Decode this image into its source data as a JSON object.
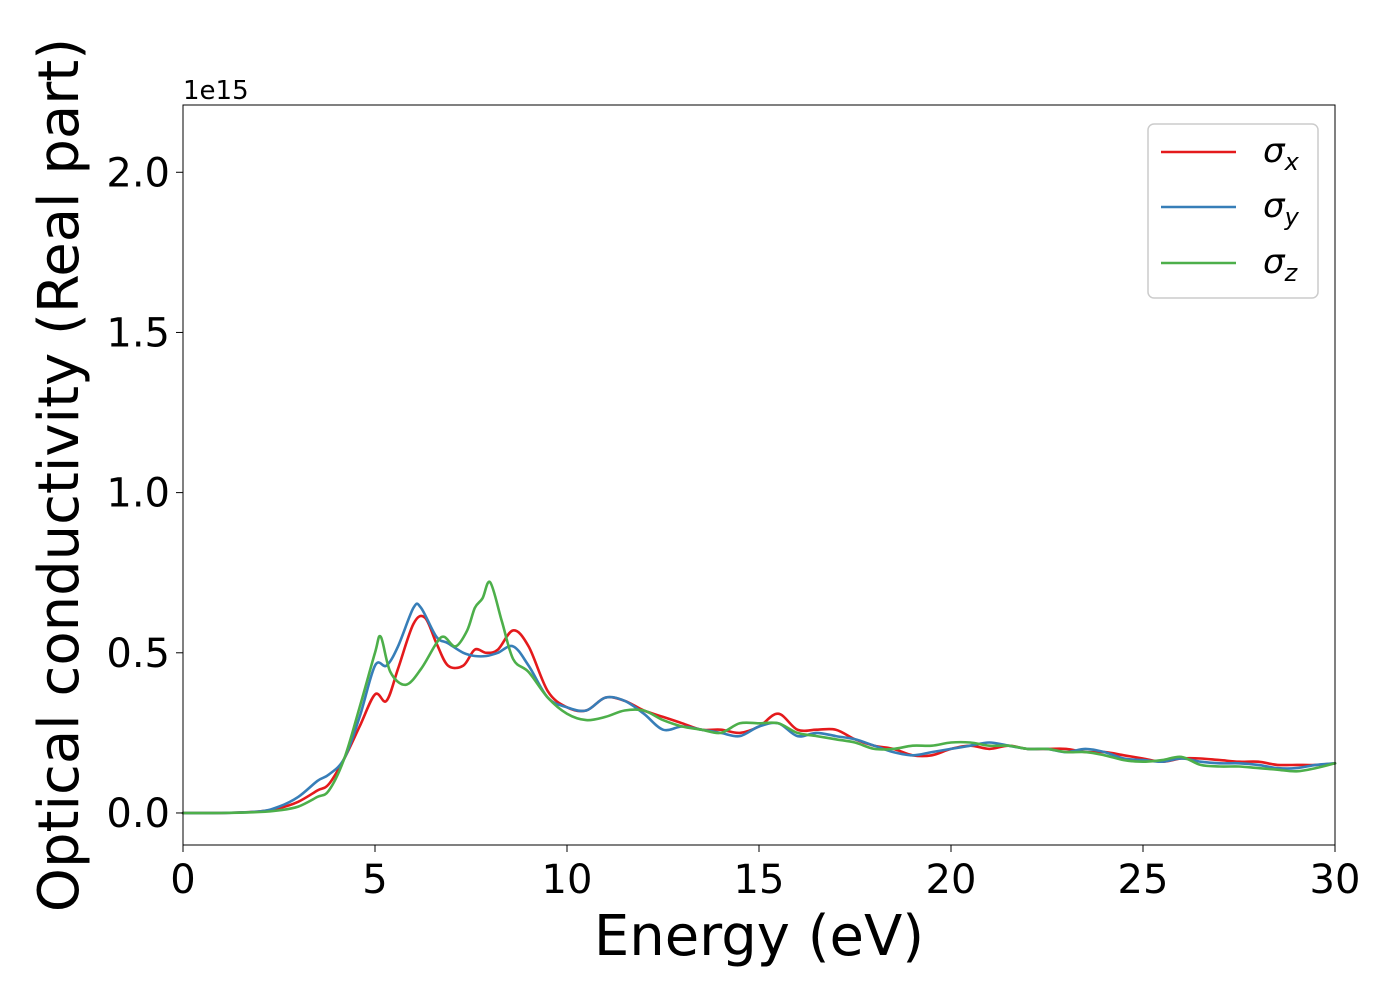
{
  "chart_data": {
    "type": "line",
    "xlabel": "Energy (eV)",
    "ylabel": "Optical conductivity (Real part)",
    "y_offset_label": "1e15",
    "xlim": [
      0,
      30
    ],
    "ylim": [
      -0.1,
      2.21
    ],
    "x_ticks": [
      0,
      5,
      10,
      15,
      20,
      25,
      30
    ],
    "x_tick_labels": [
      "0",
      "5",
      "10",
      "15",
      "20",
      "25",
      "30"
    ],
    "y_ticks": [
      0.0,
      0.5,
      1.0,
      1.5,
      2.0
    ],
    "y_tick_labels": [
      "0.0",
      "0.5",
      "1.0",
      "1.5",
      "2.0"
    ],
    "grid": false,
    "legend_position": "top-right",
    "series": [
      {
        "name": "σx",
        "name_base": "σ",
        "name_sub": "x",
        "color": "#e41a1c",
        "x": [
          0,
          1,
          2,
          2.5,
          3,
          3.5,
          3.8,
          4.2,
          4.6,
          5.0,
          5.3,
          5.6,
          6.0,
          6.3,
          6.6,
          6.9,
          7.3,
          7.6,
          7.9,
          8.2,
          8.6,
          9.0,
          9.5,
          10.0,
          10.5,
          11.0,
          11.5,
          12.0,
          12.5,
          13.0,
          13.5,
          14.0,
          14.5,
          15.0,
          15.5,
          16.0,
          16.5,
          17.0,
          17.5,
          18.0,
          18.5,
          19.0,
          19.5,
          20.0,
          20.5,
          21.0,
          21.5,
          22.0,
          22.5,
          23.0,
          23.5,
          24.0,
          24.5,
          25.0,
          25.5,
          26.0,
          26.5,
          27.0,
          27.5,
          28.0,
          28.5,
          29.0,
          29.5,
          30.0
        ],
        "y": [
          0.0,
          0.0,
          0.005,
          0.015,
          0.035,
          0.07,
          0.09,
          0.17,
          0.27,
          0.37,
          0.35,
          0.45,
          0.59,
          0.61,
          0.53,
          0.46,
          0.46,
          0.51,
          0.5,
          0.51,
          0.57,
          0.52,
          0.38,
          0.33,
          0.32,
          0.36,
          0.35,
          0.32,
          0.3,
          0.28,
          0.26,
          0.26,
          0.25,
          0.27,
          0.31,
          0.26,
          0.26,
          0.26,
          0.23,
          0.21,
          0.2,
          0.18,
          0.18,
          0.2,
          0.21,
          0.2,
          0.21,
          0.2,
          0.2,
          0.2,
          0.19,
          0.19,
          0.18,
          0.17,
          0.16,
          0.17,
          0.17,
          0.165,
          0.16,
          0.16,
          0.15,
          0.15,
          0.15,
          0.155
        ]
      },
      {
        "name": "σy",
        "name_base": "σ",
        "name_sub": "y",
        "color": "#377eb8",
        "x": [
          0,
          1,
          2,
          2.5,
          3,
          3.5,
          3.8,
          4.2,
          4.6,
          5.0,
          5.3,
          5.6,
          6.0,
          6.2,
          6.6,
          6.9,
          7.3,
          7.6,
          7.9,
          8.2,
          8.6,
          9.0,
          9.5,
          10.0,
          10.5,
          11.0,
          11.5,
          12.0,
          12.5,
          13.0,
          13.5,
          14.0,
          14.5,
          15.0,
          15.5,
          16.0,
          16.5,
          17.0,
          17.5,
          18.0,
          18.5,
          19.0,
          19.5,
          20.0,
          20.5,
          21.0,
          21.5,
          22.0,
          22.5,
          23.0,
          23.5,
          24.0,
          24.5,
          25.0,
          25.5,
          26.0,
          26.5,
          27.0,
          27.5,
          28.0,
          28.5,
          29.0,
          29.5,
          30.0
        ],
        "y": [
          0.0,
          0.0,
          0.005,
          0.02,
          0.05,
          0.1,
          0.12,
          0.17,
          0.3,
          0.46,
          0.46,
          0.52,
          0.64,
          0.64,
          0.55,
          0.53,
          0.5,
          0.49,
          0.49,
          0.5,
          0.52,
          0.46,
          0.36,
          0.33,
          0.32,
          0.36,
          0.35,
          0.31,
          0.26,
          0.27,
          0.26,
          0.25,
          0.24,
          0.27,
          0.28,
          0.24,
          0.25,
          0.24,
          0.23,
          0.21,
          0.19,
          0.18,
          0.19,
          0.2,
          0.21,
          0.22,
          0.21,
          0.2,
          0.2,
          0.19,
          0.2,
          0.19,
          0.17,
          0.165,
          0.16,
          0.17,
          0.16,
          0.155,
          0.155,
          0.15,
          0.14,
          0.14,
          0.15,
          0.155
        ]
      },
      {
        "name": "σz",
        "name_base": "σ",
        "name_sub": "z",
        "color": "#4daf4a",
        "x": [
          0,
          1,
          2,
          2.5,
          3,
          3.5,
          3.8,
          4.2,
          4.6,
          5.0,
          5.15,
          5.4,
          5.8,
          6.2,
          6.6,
          6.8,
          7.1,
          7.4,
          7.6,
          7.8,
          8.0,
          8.3,
          8.6,
          9.0,
          9.5,
          10.0,
          10.5,
          11.0,
          11.5,
          12.0,
          12.5,
          13.0,
          13.5,
          14.0,
          14.5,
          15.0,
          15.5,
          16.0,
          16.5,
          17.0,
          17.5,
          18.0,
          18.5,
          19.0,
          19.5,
          20.0,
          20.5,
          21.0,
          21.5,
          22.0,
          22.5,
          23.0,
          23.5,
          24.0,
          24.5,
          25.0,
          25.5,
          26.0,
          26.5,
          27.0,
          27.5,
          28.0,
          28.5,
          29.0,
          29.5,
          30.0
        ],
        "y": [
          0.0,
          0.0,
          0.003,
          0.008,
          0.02,
          0.05,
          0.07,
          0.17,
          0.33,
          0.5,
          0.55,
          0.44,
          0.4,
          0.45,
          0.53,
          0.55,
          0.52,
          0.57,
          0.64,
          0.67,
          0.72,
          0.6,
          0.48,
          0.44,
          0.36,
          0.31,
          0.29,
          0.3,
          0.32,
          0.32,
          0.29,
          0.27,
          0.26,
          0.25,
          0.28,
          0.28,
          0.28,
          0.25,
          0.24,
          0.23,
          0.22,
          0.2,
          0.2,
          0.21,
          0.21,
          0.22,
          0.22,
          0.21,
          0.21,
          0.2,
          0.2,
          0.19,
          0.19,
          0.18,
          0.165,
          0.16,
          0.165,
          0.175,
          0.15,
          0.145,
          0.145,
          0.14,
          0.135,
          0.13,
          0.14,
          0.155
        ]
      }
    ]
  }
}
